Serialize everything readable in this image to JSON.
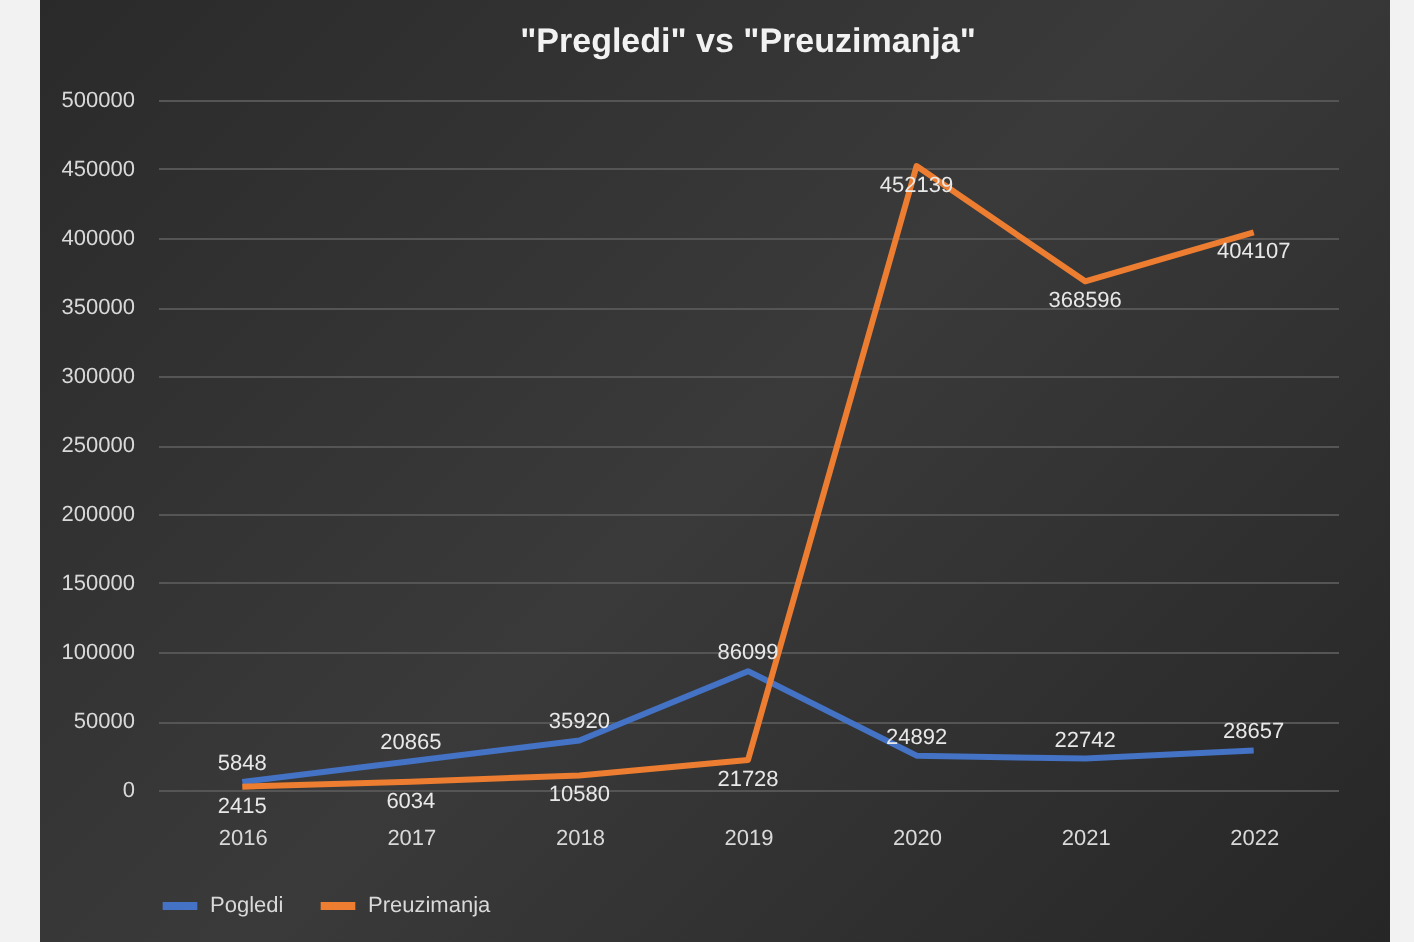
{
  "chart_data": {
    "type": "line",
    "title": "\"Pregledi\" vs \"Preuzimanja\"",
    "categories": [
      "2016",
      "2017",
      "2018",
      "2019",
      "2020",
      "2021",
      "2022"
    ],
    "series": [
      {
        "name": "Pogledi",
        "color": "#4472c4",
        "values": [
          5848,
          20865,
          35920,
          86099,
          24892,
          22742,
          28657
        ]
      },
      {
        "name": "Preuzimanja",
        "color": "#ed7d31",
        "values": [
          2415,
          6034,
          10580,
          21728,
          452139,
          368596,
          404107
        ]
      }
    ],
    "ylim": [
      0,
      500000
    ],
    "yticks": [
      0,
      50000,
      100000,
      150000,
      200000,
      250000,
      300000,
      350000,
      400000,
      450000,
      500000
    ],
    "grid": "y",
    "legend": "bottom",
    "data_labels": true,
    "marker": "none",
    "line_style": "solid"
  }
}
